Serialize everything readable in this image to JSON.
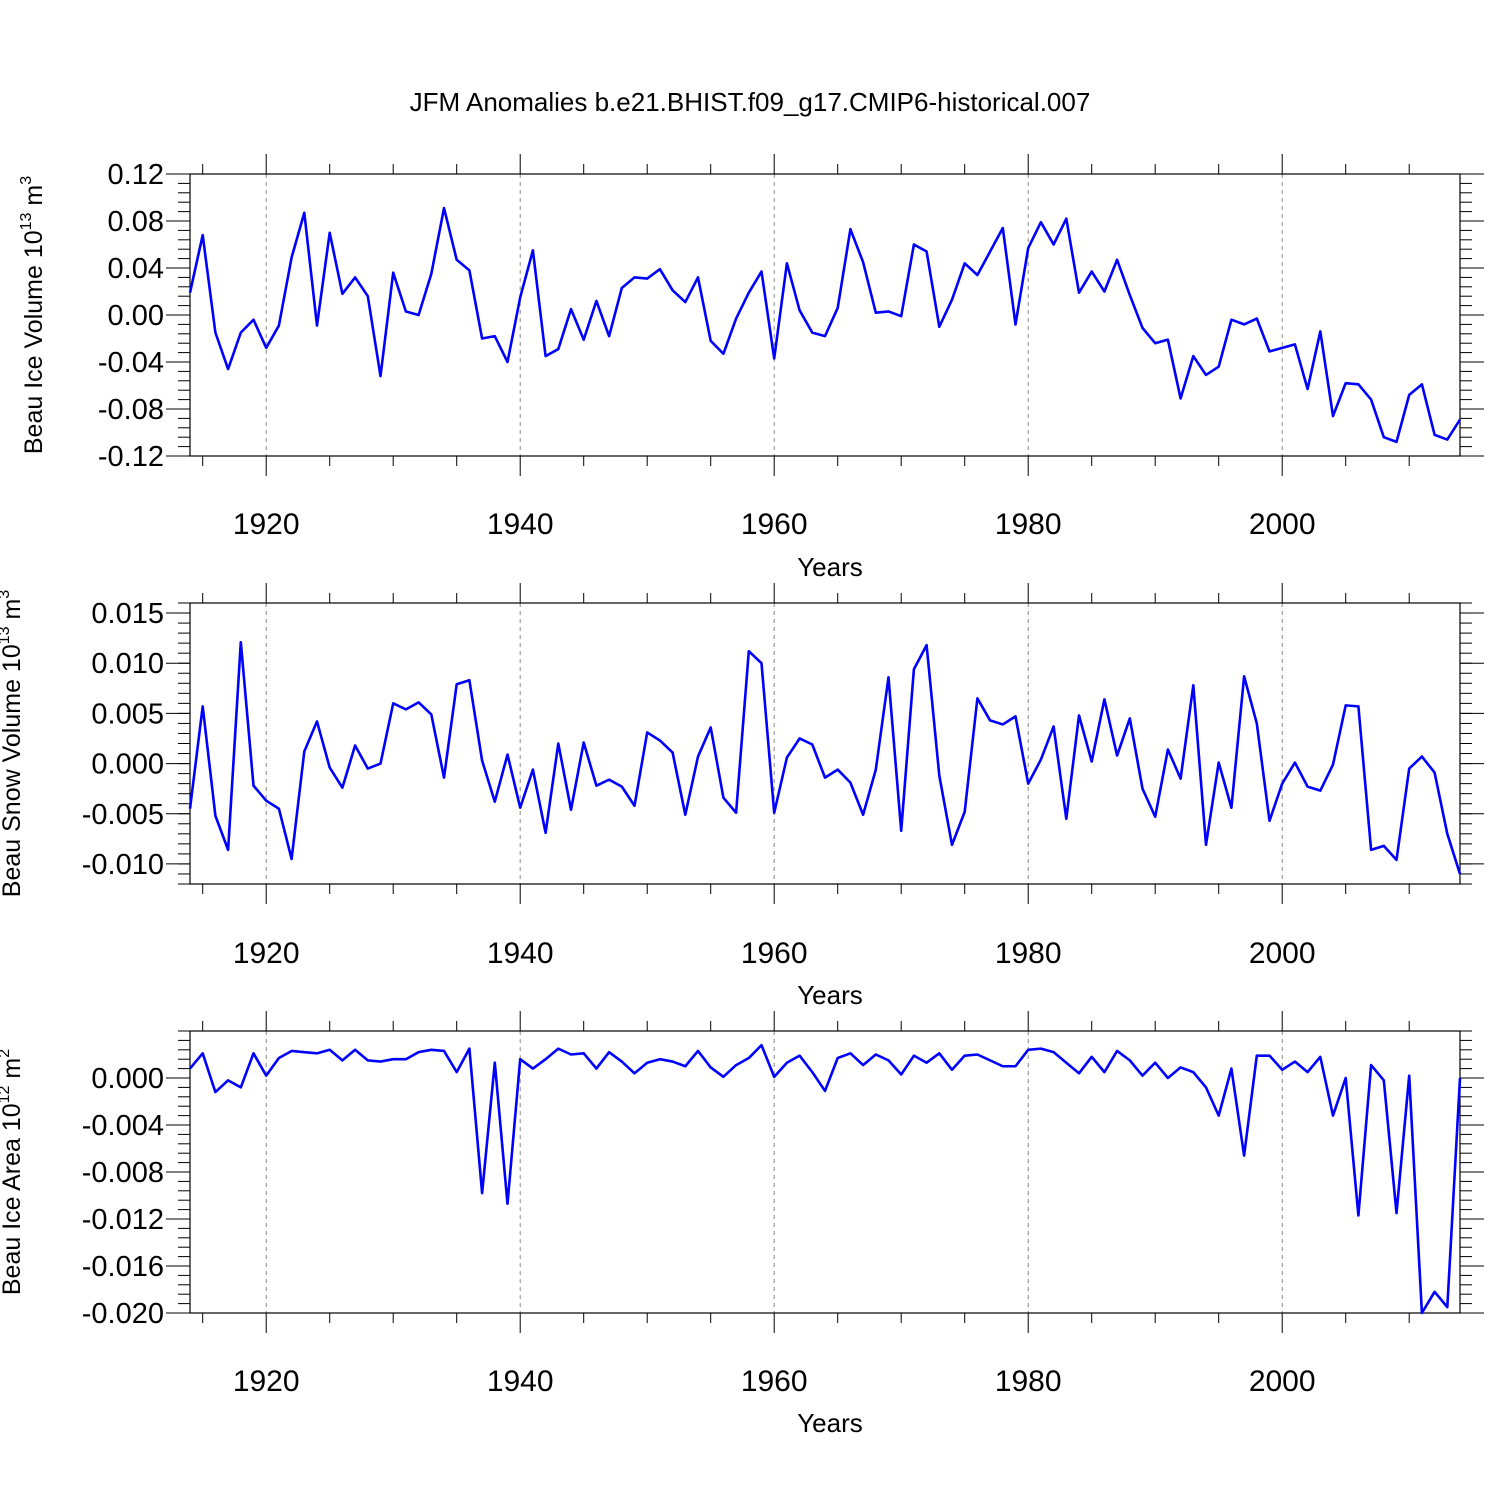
{
  "chart_data": {
    "title": "JFM Anomalies b.e21.BHIST.f09_g17.CMIP6-historical.007",
    "years_start": 1914,
    "xlim": [
      1914,
      2014
    ],
    "x_ticks": [
      1920,
      1940,
      1960,
      1980,
      2000
    ],
    "x_tick_labels": [
      "1920",
      "1940",
      "1960",
      "1980",
      "2000"
    ],
    "x_grid_lines": [
      1920,
      1940,
      1960,
      1980,
      2000
    ],
    "panels": [
      {
        "type": "line",
        "name": "ice-volume",
        "xlabel": "Years",
        "ylabel": "Beau Ice Volume 10",
        "ylabel_exp": "13",
        "ylabel_unit": " m",
        "ylabel_unit_exp": "3",
        "ylim": [
          -0.12,
          0.12
        ],
        "y_ticks": [
          -0.12,
          -0.08,
          -0.04,
          0.0,
          0.04,
          0.08,
          0.12
        ],
        "y_tick_labels": [
          "-0.12",
          "-0.08",
          "-0.04",
          "0.00",
          "0.04",
          "0.08",
          "0.12"
        ],
        "y_minor_step": 0.008,
        "color": "#0000ff",
        "values": [
          0.019,
          0.068,
          -0.015,
          -0.046,
          -0.015,
          -0.004,
          -0.028,
          -0.009,
          0.049,
          0.087,
          -0.009,
          0.07,
          0.018,
          0.032,
          0.016,
          -0.052,
          0.036,
          0.003,
          0.0,
          0.035,
          0.091,
          0.047,
          0.038,
          -0.02,
          -0.018,
          -0.04,
          0.015,
          0.055,
          -0.035,
          -0.029,
          0.005,
          -0.021,
          0.012,
          -0.018,
          0.023,
          0.032,
          0.031,
          0.039,
          0.021,
          0.011,
          0.032,
          -0.022,
          -0.033,
          -0.003,
          0.019,
          0.037,
          -0.037,
          0.044,
          0.004,
          -0.015,
          -0.018,
          0.006,
          0.073,
          0.045,
          0.002,
          0.003,
          -0.001,
          0.06,
          0.054,
          -0.01,
          0.013,
          0.044,
          0.034,
          0.054,
          0.074,
          -0.008,
          0.057,
          0.079,
          0.06,
          0.082,
          0.019,
          0.037,
          0.02,
          0.047,
          0.017,
          -0.011,
          -0.024,
          -0.021,
          -0.071,
          -0.035,
          -0.051,
          -0.044,
          -0.004,
          -0.008,
          -0.003,
          -0.031,
          -0.028,
          -0.025,
          -0.063,
          -0.014,
          -0.086,
          -0.058,
          -0.059,
          -0.072,
          -0.104,
          -0.108,
          -0.068,
          -0.059,
          -0.102,
          -0.106,
          -0.089
        ]
      },
      {
        "type": "line",
        "name": "snow-volume",
        "xlabel": "Years",
        "ylabel": "Beau Snow Volume 10",
        "ylabel_exp": "13",
        "ylabel_unit": " m",
        "ylabel_unit_exp": "3",
        "ylim": [
          -0.012,
          0.016
        ],
        "y_ticks": [
          -0.01,
          -0.005,
          0.0,
          0.005,
          0.01,
          0.015
        ],
        "y_tick_labels": [
          "-0.010",
          "-0.005",
          "0.000",
          "0.005",
          "0.010",
          "0.015"
        ],
        "y_minor_step": 0.001,
        "color": "#0000ff",
        "values": [
          -0.0045,
          0.0057,
          -0.0052,
          -0.0086,
          0.0121,
          -0.0022,
          -0.0037,
          -0.0045,
          -0.0095,
          0.0012,
          0.0042,
          -0.0004,
          -0.0024,
          0.0018,
          -0.0005,
          0.0,
          0.006,
          0.0054,
          0.0061,
          0.0049,
          -0.0014,
          0.0079,
          0.0083,
          0.0003,
          -0.0038,
          0.0009,
          -0.0044,
          -0.0006,
          -0.0069,
          0.002,
          -0.0046,
          0.0021,
          -0.0022,
          -0.0016,
          -0.0023,
          -0.0042,
          0.0031,
          0.0023,
          0.0011,
          -0.0051,
          0.0007,
          0.0036,
          -0.0034,
          -0.0049,
          0.0112,
          0.01,
          -0.0049,
          0.0006,
          0.0025,
          0.0019,
          -0.0014,
          -0.0006,
          -0.0019,
          -0.0051,
          -0.0006,
          0.0086,
          -0.0067,
          0.0094,
          0.0118,
          -0.0012,
          -0.0081,
          -0.0048,
          0.0065,
          0.0043,
          0.0039,
          0.0047,
          -0.002,
          0.0004,
          0.0037,
          -0.0055,
          0.0048,
          0.0002,
          0.0064,
          0.0008,
          0.0045,
          -0.0025,
          -0.0053,
          0.0014,
          -0.0015,
          0.0078,
          -0.0081,
          0.0001,
          -0.0044,
          0.0087,
          0.004,
          -0.0057,
          -0.002,
          0.0001,
          -0.0023,
          -0.0027,
          -0.0001,
          0.0058,
          0.0057,
          -0.0086,
          -0.0082,
          -0.0096,
          -0.0005,
          0.0007,
          -0.0009,
          -0.007,
          -0.011
        ]
      },
      {
        "type": "line",
        "name": "ice-area",
        "xlabel": "Years",
        "ylabel": "Beau Ice Area 10",
        "ylabel_exp": "12",
        "ylabel_unit": " m",
        "ylabel_unit_exp": "2",
        "ylim": [
          -0.02,
          0.004
        ],
        "y_ticks": [
          -0.02,
          -0.016,
          -0.012,
          -0.008,
          -0.004,
          0.0
        ],
        "y_tick_labels": [
          "-0.020",
          "-0.016",
          "-0.012",
          "-0.008",
          "-0.004",
          "0.000"
        ],
        "y_minor_step": 0.0008,
        "color": "#0000ff",
        "values": [
          0.0008,
          0.0021,
          -0.0012,
          -0.0002,
          -0.0008,
          0.0021,
          0.0002,
          0.0017,
          0.0023,
          0.0022,
          0.0021,
          0.0024,
          0.0015,
          0.0024,
          0.0015,
          0.0014,
          0.0016,
          0.0016,
          0.0022,
          0.0024,
          0.0023,
          0.0005,
          0.0025,
          -0.0098,
          0.0013,
          -0.0107,
          0.0016,
          0.0008,
          0.0016,
          0.0025,
          0.002,
          0.0021,
          0.0008,
          0.0022,
          0.0014,
          0.0004,
          0.0013,
          0.0016,
          0.0014,
          0.001,
          0.0023,
          0.0009,
          0.0001,
          0.0011,
          0.0017,
          0.0028,
          0.0001,
          0.0013,
          0.0019,
          0.0005,
          -0.0011,
          0.0017,
          0.0021,
          0.0011,
          0.002,
          0.0015,
          0.0003,
          0.0019,
          0.0013,
          0.0021,
          0.0007,
          0.0019,
          0.002,
          0.0015,
          0.001,
          0.001,
          0.0024,
          0.0025,
          0.0022,
          0.0013,
          0.0004,
          0.0018,
          0.0005,
          0.0023,
          0.0015,
          0.0002,
          0.0013,
          0.0,
          0.0009,
          0.0005,
          -0.0008,
          -0.0032,
          0.0008,
          -0.0066,
          0.0019,
          0.0019,
          0.0007,
          0.0014,
          0.0005,
          0.0018,
          -0.0032,
          0.0,
          -0.0117,
          0.0011,
          -0.0002,
          -0.0115,
          0.0002,
          -0.02,
          -0.0182,
          -0.0195,
          0.0
        ]
      }
    ]
  }
}
